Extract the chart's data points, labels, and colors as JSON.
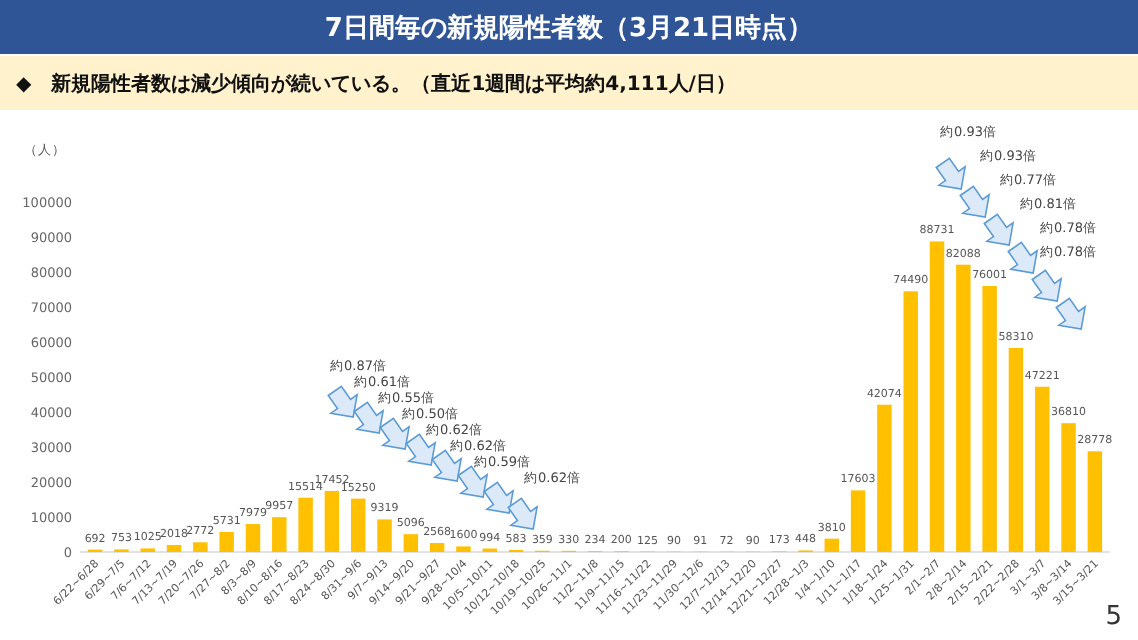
{
  "chart_data": {
    "type": "bar",
    "title": "7日間毎の新規陽性者数（3月21日時点）",
    "subtitle": "◆　新規陽性者数は減少傾向が続いている。（直近1週間は平均約4,111人/日）",
    "ylabel": "（人）",
    "categories": [
      "6/22~6/28",
      "6/29~7/5",
      "7/6~7/12",
      "7/13~7/19",
      "7/20~7/26",
      "7/27~8/2",
      "8/3~8/9",
      "8/10~8/16",
      "8/17~8/23",
      "8/24~8/30",
      "8/31~9/6",
      "9/7~9/13",
      "9/14~9/20",
      "9/21~9/27",
      "9/28~10/4",
      "10/5~10/11",
      "10/12~10/18",
      "10/19~10/25",
      "10/26~11/1",
      "11/2~11/8",
      "11/9~11/15",
      "11/16~11/22",
      "11/23~11/29",
      "11/30~12/6",
      "12/7~12/13",
      "12/14~12/20",
      "12/21~12/27",
      "12/28~1/3",
      "1/4~1/10",
      "1/11~1/17",
      "1/18~1/24",
      "1/25~1/31",
      "2/1~2/7",
      "2/8~2/14",
      "2/15~2/21",
      "2/22~2/28",
      "3/1~3/7",
      "3/8~3/14",
      "3/15~3/21"
    ],
    "values": [
      692,
      753,
      1025,
      2018,
      2772,
      5731,
      7979,
      9957,
      15514,
      17452,
      15250,
      9319,
      5096,
      2568,
      1600,
      994,
      583,
      359,
      330,
      234,
      200,
      125,
      90,
      91,
      72,
      90,
      173,
      448,
      3810,
      17603,
      42074,
      74490,
      88731,
      82088,
      76001,
      58310,
      47221,
      36810,
      28778
    ],
    "color": "#ffc000",
    "data_labels": true,
    "ylim": [
      0,
      100000
    ],
    "yticks": [
      0,
      10000,
      20000,
      30000,
      40000,
      50000,
      60000,
      70000,
      80000,
      90000,
      100000
    ],
    "grid": false,
    "annotations": [
      "約0.87倍",
      "約0.61倍",
      "約0.55倍",
      "約0.50倍",
      "約0.62倍",
      "約0.62倍",
      "約0.59倍",
      "約0.62倍",
      "約0.93倍",
      "約0.93倍",
      "約0.77倍",
      "約0.81倍",
      "約0.78倍",
      "約0.78倍",
      "5"
    ]
  }
}
